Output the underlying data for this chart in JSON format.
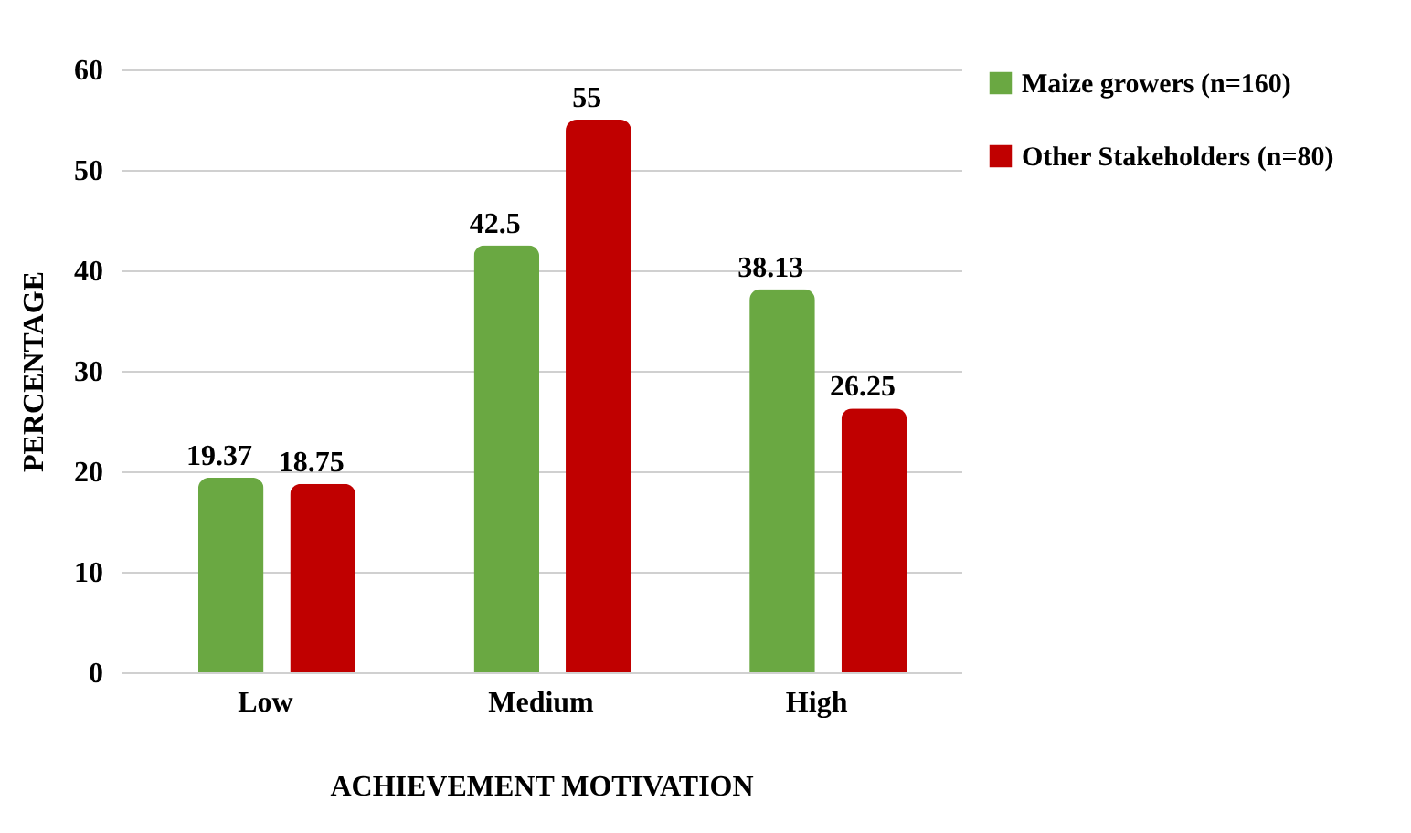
{
  "chart_data": {
    "type": "bar",
    "xlabel": "ACHIEVEMENT MOTIVATION",
    "ylabel": "PERCENTAGE",
    "categories": [
      "Low",
      "Medium",
      "High"
    ],
    "series": [
      {
        "name": "Maize growers (n=160)",
        "color": "#6aa842",
        "values": [
          19.37,
          42.5,
          38.13
        ]
      },
      {
        "name": "Other Stakeholders (n=80)",
        "color": "#c00000",
        "values": [
          18.75,
          55,
          26.25
        ]
      }
    ],
    "ylim": [
      0,
      60
    ],
    "yticks": [
      0,
      10,
      20,
      30,
      40,
      50,
      60
    ],
    "grid": "y",
    "legend": "right",
    "data_labels": true
  }
}
